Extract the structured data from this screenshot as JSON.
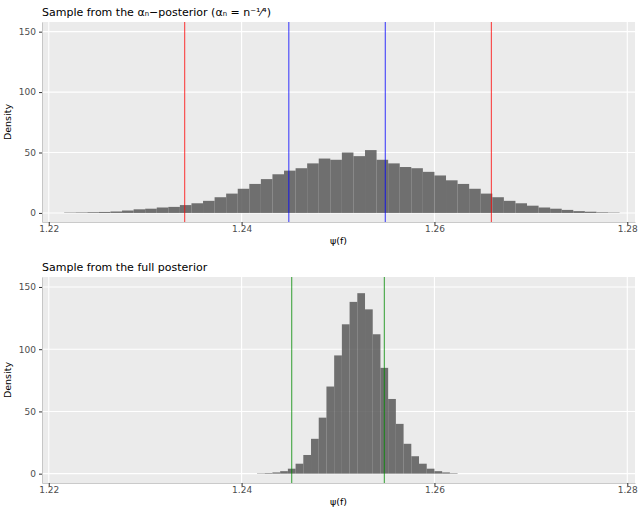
{
  "chart_data": [
    {
      "type": "histogram",
      "title": "Sample from the αₙ−posterior (αₙ = n⁻¹⁄⁴)",
      "x_label": "ψ(f)",
      "y_label": "Density",
      "bins": [
        1.2216,
        1.2228,
        1.224,
        1.2252,
        1.2264,
        1.2276,
        1.2288,
        1.23,
        1.2312,
        1.2324,
        1.2336,
        1.2348,
        1.236,
        1.2372,
        1.2384,
        1.2396,
        1.2408,
        1.242,
        1.2432,
        1.2444,
        1.2456,
        1.2468,
        1.248,
        1.2492,
        1.2504,
        1.2516,
        1.2528,
        1.254,
        1.2552,
        1.2564,
        1.2576,
        1.2588,
        1.26,
        1.2612,
        1.2624,
        1.2636,
        1.2648,
        1.266,
        1.2672,
        1.2684,
        1.2696,
        1.2708,
        1.272,
        1.2732,
        1.2744,
        1.2756,
        1.2768,
        1.278,
        1.2792
      ],
      "values": [
        0.3,
        0.4,
        0.6,
        0.8,
        1.2,
        2,
        3,
        3.5,
        4.5,
        5,
        6.5,
        8,
        10,
        13,
        16,
        20,
        24,
        28,
        32,
        35,
        37,
        41,
        45,
        44,
        50,
        47,
        52,
        44,
        41,
        38,
        37,
        34,
        31,
        27,
        24,
        20,
        16,
        13,
        10,
        8,
        6,
        4.5,
        3.5,
        2.5,
        1.5,
        1,
        0.5,
        0.3
      ],
      "color": "#595959",
      "reference_lines": [
        {
          "x": 1.2341,
          "color": "#ff0000"
        },
        {
          "x": 1.2659,
          "color": "#ff0000"
        },
        {
          "x": 1.2449,
          "color": "#0000ff"
        },
        {
          "x": 1.2549,
          "color": "#0000ff"
        }
      ],
      "xlim": [
        1.2193,
        1.2808
      ],
      "ylim": [
        -7.5,
        158
      ],
      "xticks": [
        1.22,
        1.24,
        1.26,
        1.28
      ],
      "yticks": [
        0,
        50,
        100,
        150
      ],
      "grid": true
    },
    {
      "type": "histogram",
      "title": "Sample from the full posterior",
      "x_label": "ψ(f)",
      "y_label": "Density",
      "bins": [
        1.2416,
        1.2424,
        1.2432,
        1.244,
        1.2448,
        1.2456,
        1.2464,
        1.2472,
        1.248,
        1.2488,
        1.2496,
        1.2504,
        1.2512,
        1.252,
        1.2528,
        1.2536,
        1.2544,
        1.2552,
        1.256,
        1.2568,
        1.2576,
        1.2584,
        1.2592,
        1.26,
        1.2608,
        1.2616,
        1.2624
      ],
      "values": [
        0.3,
        0.5,
        1,
        2,
        4,
        8,
        15,
        28,
        45,
        70,
        95,
        120,
        138,
        145,
        132,
        112,
        85,
        60,
        40,
        24,
        14,
        8,
        4,
        2,
        1,
        0.4
      ],
      "color": "#595959",
      "reference_lines": [
        {
          "x": 1.2452,
          "color": "#008b00"
        },
        {
          "x": 1.2548,
          "color": "#008b00"
        }
      ],
      "xlim": [
        1.2193,
        1.2808
      ],
      "ylim": [
        -7.5,
        158
      ],
      "xticks": [
        1.22,
        1.24,
        1.26,
        1.28
      ],
      "yticks": [
        0,
        50,
        100,
        150
      ],
      "grid": true
    }
  ]
}
